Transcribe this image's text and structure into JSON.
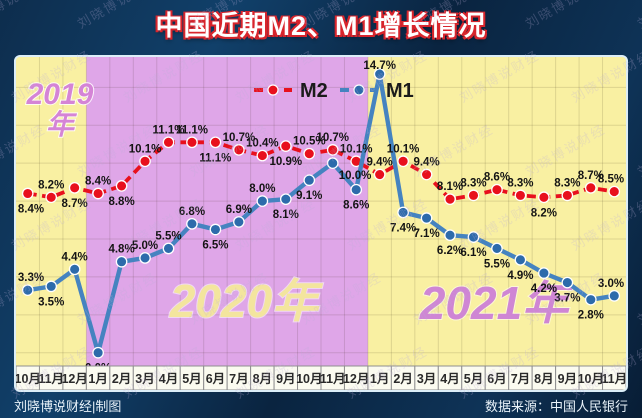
{
  "header": {
    "title": "中国近期M2、M1增长情况"
  },
  "footer": {
    "credit": "刘晓博说财经|制图",
    "source": "数据来源：中国人民银行"
  },
  "watermark": {
    "text": "刘晓博说财经"
  },
  "chart_data": {
    "type": "line",
    "title": "中国近期M2、M1增长情况",
    "unit": "%",
    "grid": true,
    "legend_position": "top-center",
    "ylim": [
      -0.7,
      15.6
    ],
    "grid_step": 2,
    "categories": [
      "10月",
      "11月",
      "12月",
      "1月",
      "2月",
      "3月",
      "4月",
      "5月",
      "6月",
      "7月",
      "8月",
      "9月",
      "10月",
      "11月",
      "12月",
      "1月",
      "2月",
      "3月",
      "4月",
      "5月",
      "6月",
      "7月",
      "8月",
      "9月",
      "10月",
      "11月"
    ],
    "series": [
      {
        "name": "M2",
        "color": "#e8101d",
        "dot_color": "#e8101d",
        "dashed": true,
        "values": [
          8.4,
          8.2,
          8.7,
          8.4,
          8.8,
          10.1,
          11.1,
          11.1,
          11.1,
          10.7,
          10.4,
          10.9,
          10.5,
          10.7,
          10.1,
          9.4,
          10.1,
          9.4,
          8.1,
          8.3,
          8.6,
          8.3,
          8.2,
          8.3,
          8.7,
          8.5
        ],
        "label_positions": [
          "b",
          "a",
          "b",
          "a",
          "b",
          "a",
          "a",
          "a",
          "b",
          "a",
          "a",
          "b",
          "a",
          "a",
          "a",
          "a",
          "a",
          "a",
          "a",
          "a",
          "a",
          "a",
          "b",
          "a",
          "a",
          "a"
        ]
      },
      {
        "name": "M1",
        "color": "#4583c0",
        "dot_color": "#2d6bab",
        "dashed": false,
        "values": [
          3.3,
          3.5,
          4.4,
          0.0,
          4.8,
          5.0,
          5.5,
          6.8,
          6.5,
          6.9,
          8.0,
          8.1,
          9.1,
          10.0,
          8.6,
          14.7,
          7.4,
          7.1,
          6.2,
          6.1,
          5.5,
          4.9,
          4.2,
          3.7,
          2.8,
          3.0
        ],
        "label_positions": [
          "a",
          "b",
          "a",
          "b",
          "a",
          "a",
          "a",
          "a",
          "b",
          "a",
          "a",
          "b",
          "b",
          "br",
          "b",
          "a",
          "b",
          "b",
          "b",
          "b",
          "b",
          "b",
          "b",
          "b",
          "b",
          "a"
        ]
      }
    ],
    "year_bands": [
      {
        "label": "2019年",
        "start": 0,
        "end": 3,
        "bg": "#f9f0a2",
        "label_color": "#d584d6"
      },
      {
        "label": "2020年",
        "start": 3,
        "end": 15,
        "bg": "#dfa6e8",
        "label_color": "#f3e59e"
      },
      {
        "label": "2021年",
        "start": 15,
        "end": 26,
        "bg": "#f9f0a2",
        "label_color": "#cf86d4"
      }
    ],
    "axis_style": {
      "cell_bg": "#fbfbf0",
      "cell_border": "#8f8f8f",
      "text_color": "#2a2a2a"
    },
    "label_color": "#141414"
  }
}
